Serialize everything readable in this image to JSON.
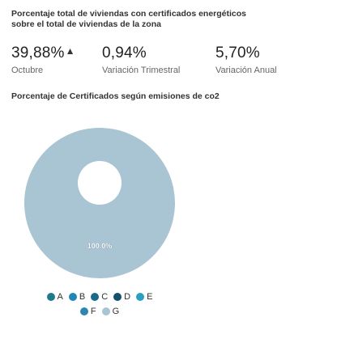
{
  "header": {
    "title": "Porcentaje total de viviendas con certificados energéticos sobre el total de viviendas de la zona"
  },
  "stats": [
    {
      "value": "39,88%",
      "trend_icon": "caret-up-icon",
      "label": "Octubre"
    },
    {
      "value": "0,94%",
      "label": "Variación Trimestral"
    },
    {
      "value": "5,70%",
      "label": "Variación Anual"
    }
  ],
  "emissions": {
    "subtitle": "Porcentaje de Certificados según emisiones de co2"
  },
  "chart_data": {
    "type": "pie",
    "donut": true,
    "labels": [
      "A",
      "B",
      "C",
      "D",
      "E",
      "F",
      "G"
    ],
    "values": [
      0,
      0,
      0,
      0,
      0,
      100,
      0
    ],
    "slice_label": "100.0%",
    "colors": [
      "#1f7a8c",
      "#1e88b4",
      "#1b6a8a",
      "#15506e",
      "#2a9fc0",
      "#2f85b0",
      "#a9c4d3"
    ],
    "pie_color": "#a9c4d3",
    "legend_position": "bottom"
  },
  "legend": {
    "rows": [
      [
        {
          "label": "A",
          "color": "#1f7a8c"
        },
        {
          "label": "B",
          "color": "#1e88b4"
        },
        {
          "label": "C",
          "color": "#1b6a8a"
        },
        {
          "label": "D",
          "color": "#15506e"
        },
        {
          "label": "E",
          "color": "#2a9fc0"
        }
      ],
      [
        {
          "label": "F",
          "color": "#2f85b0"
        },
        {
          "label": "G",
          "color": "#a9c4d3"
        }
      ]
    ]
  }
}
